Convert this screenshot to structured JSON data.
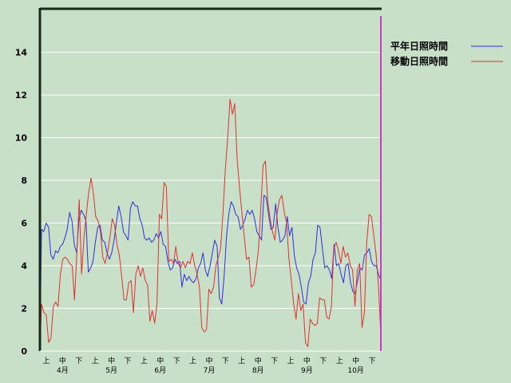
{
  "chart_data": {
    "type": "line",
    "title": "",
    "xlabel": "",
    "ylabel": "",
    "ylim": [
      0,
      16
    ],
    "yticks": [
      0,
      2,
      4,
      6,
      8,
      10,
      12,
      14
    ],
    "grid": true,
    "legend_position": "top-right",
    "colors": {
      "background": "#c8e0c8",
      "grid": "#ffffff",
      "axis": "#1a2a1a",
      "marker_line": "#c040c0"
    },
    "x_tick_labels": [
      "上",
      "中",
      "下",
      "上",
      "中",
      "下",
      "上",
      "中",
      "下",
      "上",
      "中",
      "下",
      "上",
      "中",
      "下",
      "上",
      "中",
      "下",
      "上",
      "中",
      "下"
    ],
    "month_labels": [
      "4月",
      "5月",
      "6月",
      "7月",
      "8月",
      "9月",
      "10月"
    ],
    "series": [
      {
        "name": "平年日照時間",
        "color": "#3030e0",
        "values": [
          5.7,
          5.6,
          6.0,
          5.8,
          4.5,
          4.3,
          4.7,
          4.6,
          4.9,
          5.0,
          5.3,
          5.7,
          6.5,
          6.1,
          5.0,
          4.6,
          6.2,
          6.6,
          6.4,
          6.1,
          3.7,
          3.9,
          4.2,
          5.1,
          5.8,
          5.9,
          5.2,
          5.1,
          4.6,
          4.3,
          4.6,
          5.2,
          6.0,
          6.8,
          6.3,
          5.6,
          5.4,
          5.2,
          6.7,
          7.0,
          6.8,
          6.8,
          6.2,
          5.9,
          5.3,
          5.2,
          5.3,
          5.1,
          5.2,
          5.5,
          5.3,
          5.6,
          5.0,
          4.9,
          4.2,
          3.8,
          3.9,
          4.3,
          4.1,
          4.2,
          3.0,
          3.6,
          3.3,
          3.5,
          3.3,
          3.2,
          3.4,
          3.9,
          4.1,
          4.6,
          3.8,
          3.5,
          4.0,
          4.6,
          5.2,
          4.9,
          2.5,
          2.2,
          3.5,
          5.3,
          6.4,
          7.0,
          6.8,
          6.4,
          6.3,
          5.7,
          5.9,
          6.2,
          6.6,
          6.4,
          6.6,
          6.2,
          5.6,
          5.4,
          5.2,
          7.3,
          7.2,
          6.4,
          5.7,
          5.8,
          6.9,
          5.8,
          5.1,
          5.2,
          5.4,
          6.3,
          5.4,
          5.8,
          4.5,
          3.9,
          3.6,
          3.0,
          2.3,
          2.2,
          3.2,
          3.5,
          4.3,
          4.6,
          5.9,
          5.8,
          4.8,
          3.9,
          4.0,
          3.8,
          3.4,
          5.0,
          4.0,
          4.1,
          3.6,
          3.2,
          4.0,
          4.1,
          3.2,
          2.8,
          2.7,
          3.3,
          3.9,
          3.8,
          4.5,
          4.6,
          4.8,
          4.2,
          4.0,
          4.0,
          3.6,
          3.3
        ]
      },
      {
        "name": "移動日照時間",
        "color": "#e03030",
        "values": [
          2.2,
          1.8,
          1.7,
          0.4,
          0.6,
          2.1,
          2.3,
          2.1,
          3.6,
          4.3,
          4.4,
          4.3,
          4.1,
          4.0,
          2.4,
          4.6,
          7.1,
          3.6,
          5.3,
          6.4,
          7.4,
          8.1,
          7.4,
          6.3,
          6.1,
          5.6,
          4.4,
          4.1,
          4.6,
          5.3,
          6.2,
          5.9,
          5.0,
          4.5,
          3.5,
          2.4,
          2.4,
          3.2,
          3.3,
          1.8,
          3.6,
          4.0,
          3.5,
          3.9,
          3.3,
          3.1,
          1.4,
          1.9,
          1.3,
          2.2,
          6.4,
          6.2,
          7.9,
          7.7,
          4.2,
          4.3,
          4.1,
          4.9,
          4.1,
          3.9,
          4.2,
          3.9,
          4.2,
          4.1,
          4.6,
          4.0,
          3.6,
          3.0,
          1.1,
          0.9,
          1.0,
          2.9,
          2.7,
          3.0,
          4.0,
          4.4,
          4.8,
          6.5,
          8.5,
          10.0,
          11.8,
          11.1,
          11.6,
          9.0,
          7.7,
          6.5,
          5.4,
          4.3,
          4.4,
          3.0,
          3.1,
          3.8,
          4.7,
          6.6,
          8.7,
          8.9,
          7.0,
          6.2,
          5.6,
          5.2,
          6.5,
          7.1,
          7.3,
          6.5,
          6.0,
          4.3,
          3.3,
          2.2,
          1.5,
          2.7,
          1.9,
          2.2,
          0.4,
          0.2,
          1.5,
          1.3,
          1.2,
          1.3,
          2.5,
          2.4,
          2.4,
          1.6,
          1.5,
          2.1,
          4.8,
          5.1,
          4.7,
          4.1,
          4.9,
          4.4,
          4.6,
          4.0,
          3.8,
          2.1,
          3.8,
          4.1,
          1.1,
          1.8,
          5.1,
          6.4,
          6.3,
          5.4,
          4.5,
          3.0,
          0.7
        ]
      }
    ]
  }
}
